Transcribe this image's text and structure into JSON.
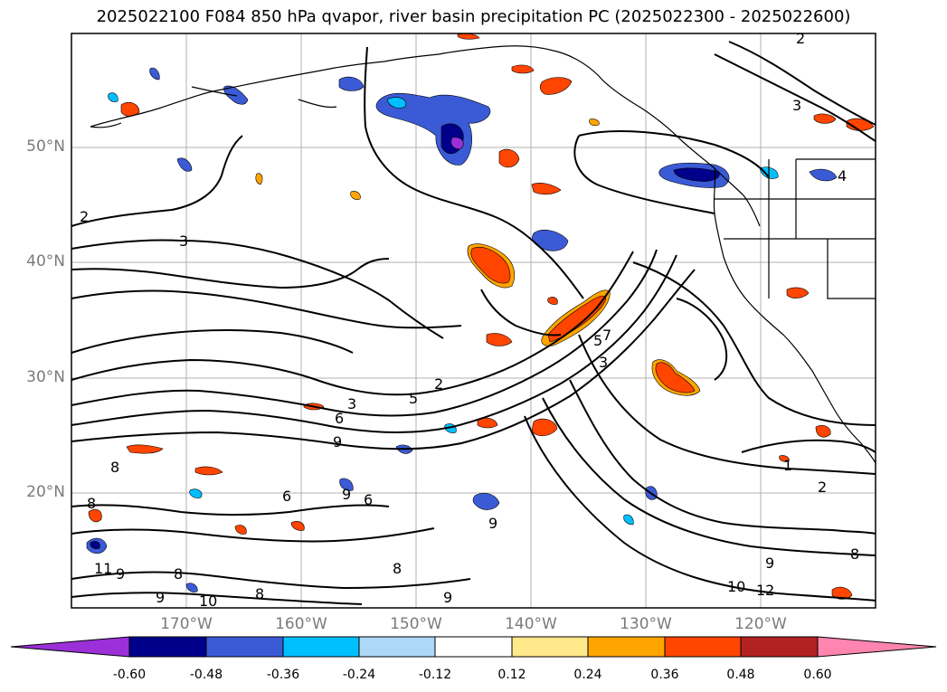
{
  "title": "2025022100 F084 850 hPa qvapor, river basin precipitation PC (2025022300 - 2025022600)",
  "latitude_labels": [
    "50°N",
    "40°N",
    "30°N",
    "20°N"
  ],
  "longitude_labels": [
    "170°W",
    "160°W",
    "150°W",
    "140°W",
    "130°W",
    "120°W"
  ],
  "colorbar": {
    "tick_labels": [
      "-0.60",
      "-0.48",
      "-0.36",
      "-0.24",
      "-0.12",
      "0.12",
      "0.24",
      "0.36",
      "0.48",
      "0.60"
    ],
    "colors": [
      "#9b30d9",
      "#00008b",
      "#3b5bd6",
      "#00bfff",
      "#add8f7",
      "#ffffff",
      "#ffe98a",
      "#ffa500",
      "#ff4500",
      "#b22222",
      "#ff85b0"
    ]
  },
  "contour_labels": [
    "2",
    "3",
    "3",
    "2",
    "5",
    "7",
    "9",
    "8",
    "8",
    "11",
    "9",
    "8",
    "9",
    "10",
    "8",
    "6",
    "6",
    "9",
    "8",
    "9",
    "12",
    "10",
    "9",
    "2",
    "1",
    "3",
    "3",
    "2",
    "4",
    "9",
    "8",
    "6",
    "5"
  ],
  "colors": {
    "land_outline": "#000000",
    "grid": "#b0b0b0",
    "tick_label": "#7a7a7a"
  }
}
